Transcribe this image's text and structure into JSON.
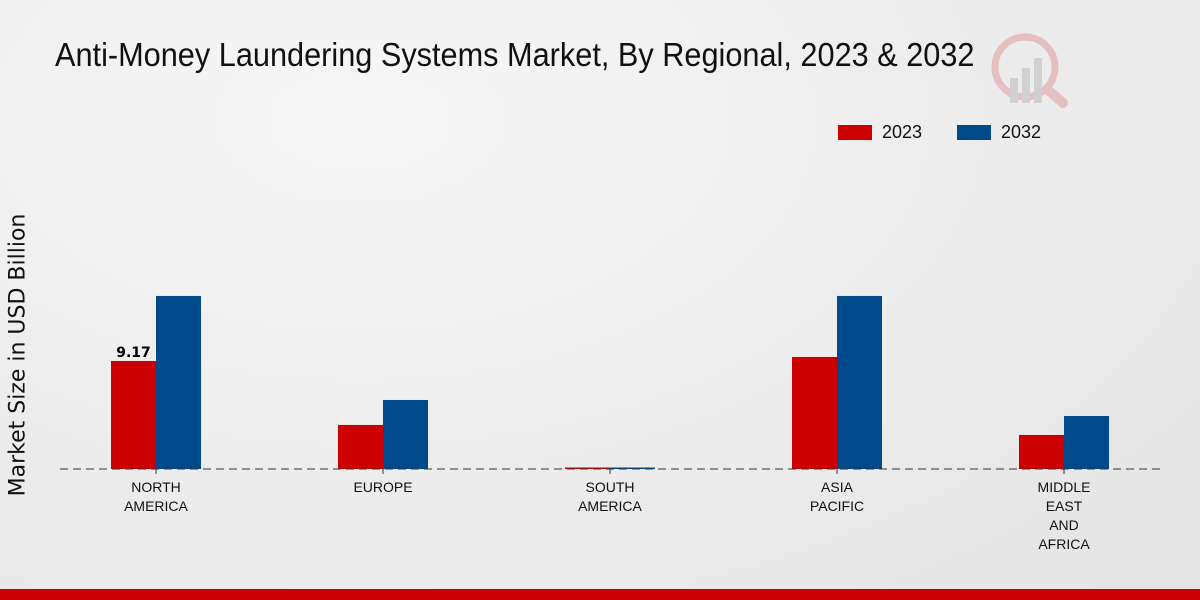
{
  "chart_data": {
    "type": "bar",
    "title": "Anti-Money Laundering Systems Market, By Regional, 2023 & 2032",
    "xlabel": "",
    "ylabel": "Market Size in USD Billion",
    "categories": [
      [
        "NORTH",
        "AMERICA"
      ],
      [
        "EUROPE"
      ],
      [
        "SOUTH",
        "AMERICA"
      ],
      [
        "ASIA",
        "PACIFIC"
      ],
      [
        "MIDDLE",
        "EAST",
        "AND",
        "AFRICA"
      ]
    ],
    "series": [
      {
        "name": "2023",
        "color": "#cc0000",
        "values": [
          9.17,
          3.74,
          0.05,
          9.51,
          2.89
        ]
      },
      {
        "name": "2032",
        "color": "#004a8c",
        "values": [
          14.69,
          5.86,
          0.1,
          14.69,
          4.5
        ]
      }
    ],
    "data_labels": [
      {
        "series": 0,
        "index": 0,
        "text": "9.17"
      }
    ],
    "ylim": [
      0,
      20
    ],
    "grid": false,
    "legend": "top-right"
  }
}
